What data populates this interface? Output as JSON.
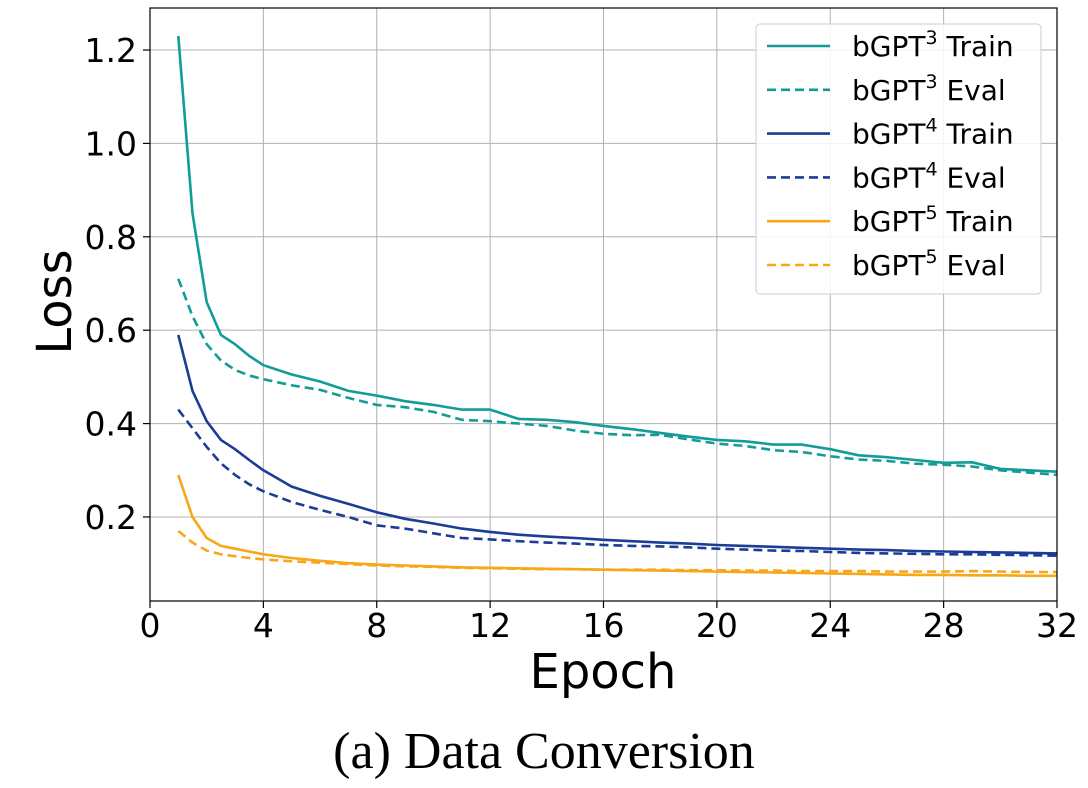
{
  "caption": "(a) Data Conversion",
  "chart_data": {
    "type": "line",
    "xlabel": "Epoch",
    "ylabel": "Loss",
    "xlim": [
      0,
      32
    ],
    "ylim": [
      0.02,
      1.29
    ],
    "xticks": [
      0,
      4,
      8,
      12,
      16,
      20,
      24,
      28,
      32
    ],
    "yticks": [
      0.2,
      0.4,
      0.6,
      0.8,
      1.0,
      1.2
    ],
    "ytick_labels": [
      "0.2",
      "0.4",
      "0.6",
      "0.8",
      "1.0",
      "1.2"
    ],
    "grid": true,
    "legend_position": "top-right",
    "x": [
      1,
      1.5,
      2,
      2.5,
      3,
      3.5,
      4,
      5,
      6,
      7,
      8,
      9,
      10,
      11,
      12,
      13,
      14,
      15,
      16,
      17,
      18,
      19,
      20,
      21,
      22,
      23,
      24,
      25,
      26,
      27,
      28,
      29,
      30,
      31,
      32
    ],
    "series": [
      {
        "name_base": "bGPT",
        "name_sup": "3",
        "name_suffix": " Train",
        "color": "#139c97",
        "dash": "solid",
        "values": [
          1.23,
          0.85,
          0.66,
          0.59,
          0.57,
          0.545,
          0.525,
          0.505,
          0.49,
          0.47,
          0.46,
          0.448,
          0.44,
          0.43,
          0.43,
          0.41,
          0.408,
          0.403,
          0.395,
          0.388,
          0.38,
          0.372,
          0.365,
          0.362,
          0.355,
          0.355,
          0.345,
          0.332,
          0.328,
          0.322,
          0.316,
          0.317,
          0.303,
          0.3,
          0.297
        ]
      },
      {
        "name_base": "bGPT",
        "name_sup": "3",
        "name_suffix": " Eval",
        "color": "#139c97",
        "dash": "dashed",
        "values": [
          0.71,
          0.63,
          0.57,
          0.535,
          0.515,
          0.503,
          0.495,
          0.482,
          0.472,
          0.455,
          0.44,
          0.435,
          0.425,
          0.408,
          0.405,
          0.4,
          0.395,
          0.385,
          0.378,
          0.375,
          0.376,
          0.366,
          0.357,
          0.352,
          0.343,
          0.339,
          0.33,
          0.323,
          0.32,
          0.314,
          0.312,
          0.308,
          0.3,
          0.295,
          0.29
        ]
      },
      {
        "name_base": "bGPT",
        "name_sup": "4",
        "name_suffix": " Train",
        "color": "#1a3d96",
        "dash": "solid",
        "values": [
          0.59,
          0.47,
          0.405,
          0.365,
          0.345,
          0.322,
          0.3,
          0.265,
          0.245,
          0.228,
          0.21,
          0.196,
          0.186,
          0.175,
          0.168,
          0.162,
          0.158,
          0.155,
          0.151,
          0.148,
          0.145,
          0.143,
          0.14,
          0.138,
          0.136,
          0.134,
          0.132,
          0.13,
          0.129,
          0.127,
          0.126,
          0.125,
          0.124,
          0.123,
          0.122
        ]
      },
      {
        "name_base": "bGPT",
        "name_sup": "4",
        "name_suffix": " Eval",
        "color": "#1a3d96",
        "dash": "dashed",
        "values": [
          0.43,
          0.39,
          0.35,
          0.315,
          0.29,
          0.27,
          0.255,
          0.232,
          0.215,
          0.2,
          0.182,
          0.175,
          0.165,
          0.155,
          0.152,
          0.148,
          0.145,
          0.143,
          0.14,
          0.138,
          0.137,
          0.135,
          0.132,
          0.13,
          0.128,
          0.127,
          0.125,
          0.123,
          0.122,
          0.121,
          0.12,
          0.12,
          0.119,
          0.118,
          0.117
        ]
      },
      {
        "name_base": "bGPT",
        "name_sup": "5",
        "name_suffix": " Train",
        "color": "#f7a718",
        "dash": "solid",
        "values": [
          0.29,
          0.2,
          0.155,
          0.138,
          0.132,
          0.126,
          0.12,
          0.112,
          0.106,
          0.101,
          0.098,
          0.096,
          0.094,
          0.092,
          0.091,
          0.09,
          0.089,
          0.088,
          0.087,
          0.086,
          0.085,
          0.084,
          0.083,
          0.082,
          0.081,
          0.08,
          0.079,
          0.078,
          0.077,
          0.076,
          0.076,
          0.075,
          0.075,
          0.074,
          0.074
        ]
      },
      {
        "name_base": "bGPT",
        "name_sup": "5",
        "name_suffix": " Eval",
        "color": "#f7a718",
        "dash": "dashed",
        "values": [
          0.17,
          0.145,
          0.128,
          0.12,
          0.116,
          0.112,
          0.109,
          0.105,
          0.102,
          0.099,
          0.096,
          0.094,
          0.093,
          0.091,
          0.09,
          0.089,
          0.088,
          0.088,
          0.087,
          0.087,
          0.087,
          0.086,
          0.086,
          0.085,
          0.085,
          0.084,
          0.084,
          0.084,
          0.083,
          0.083,
          0.083,
          0.084,
          0.083,
          0.082,
          0.082
        ]
      }
    ]
  }
}
